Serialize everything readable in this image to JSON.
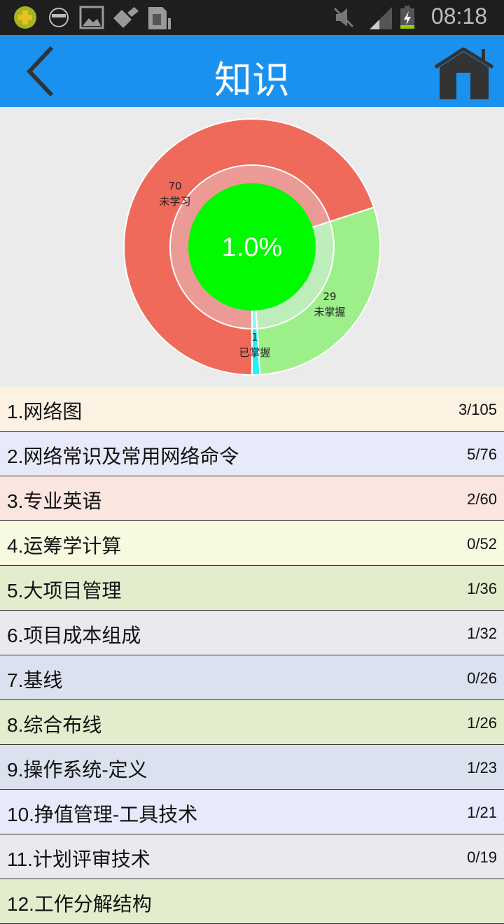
{
  "status_bar": {
    "time": "08:18",
    "icons": [
      "360-security-icon",
      "sunglasses-face-icon",
      "image-icon",
      "brush-icon",
      "sim-card-icon",
      "mute-icon",
      "signal-icon",
      "battery-charging-icon"
    ]
  },
  "header": {
    "title": "知识",
    "back_icon": "chevron-left-icon",
    "home_icon": "home-icon"
  },
  "chart_data": {
    "type": "pie",
    "center_label": "1.0%",
    "slices": [
      {
        "label": "未学习",
        "value": 70,
        "color": "#ef6a5a",
        "inner_color": "#ec9a95"
      },
      {
        "label": "未掌握",
        "value": 29,
        "color": "#9def8a",
        "inner_color": "#bdedbb"
      },
      {
        "label": "已掌握",
        "value": 1,
        "color": "#22f2f2",
        "inner_color": "#8ff5f5"
      }
    ],
    "center_color": "#00fb00"
  },
  "list": [
    {
      "name": "1.网络图",
      "count": "3/105",
      "bg": "#fdf1e2"
    },
    {
      "name": "2.网络常识及常用网络命令",
      "count": "5/76",
      "bg": "#e8e9fb"
    },
    {
      "name": "3.专业英语",
      "count": "2/60",
      "bg": "#fbe5df"
    },
    {
      "name": "4.运筹学计算",
      "count": "0/52",
      "bg": "#f8f9e1"
    },
    {
      "name": "5.大项目管理",
      "count": "1/36",
      "bg": "#e3edcd"
    },
    {
      "name": "6.项目成本组成",
      "count": "1/32",
      "bg": "#e9e9ee"
    },
    {
      "name": "7.基线",
      "count": "0/26",
      "bg": "#dbe1ee"
    },
    {
      "name": "8.综合布线",
      "count": "1/26",
      "bg": "#e3edcd"
    },
    {
      "name": "9.操作系统-定义",
      "count": "1/23",
      "bg": "#dbe1ee"
    },
    {
      "name": "10.挣值管理-工具技术",
      "count": "1/21",
      "bg": "#e8e9fb"
    },
    {
      "name": "11.计划评审技术",
      "count": "0/19",
      "bg": "#e9e9ee"
    },
    {
      "name": "12.工作分解结构",
      "count": "",
      "bg": "#e3edcd"
    }
  ]
}
